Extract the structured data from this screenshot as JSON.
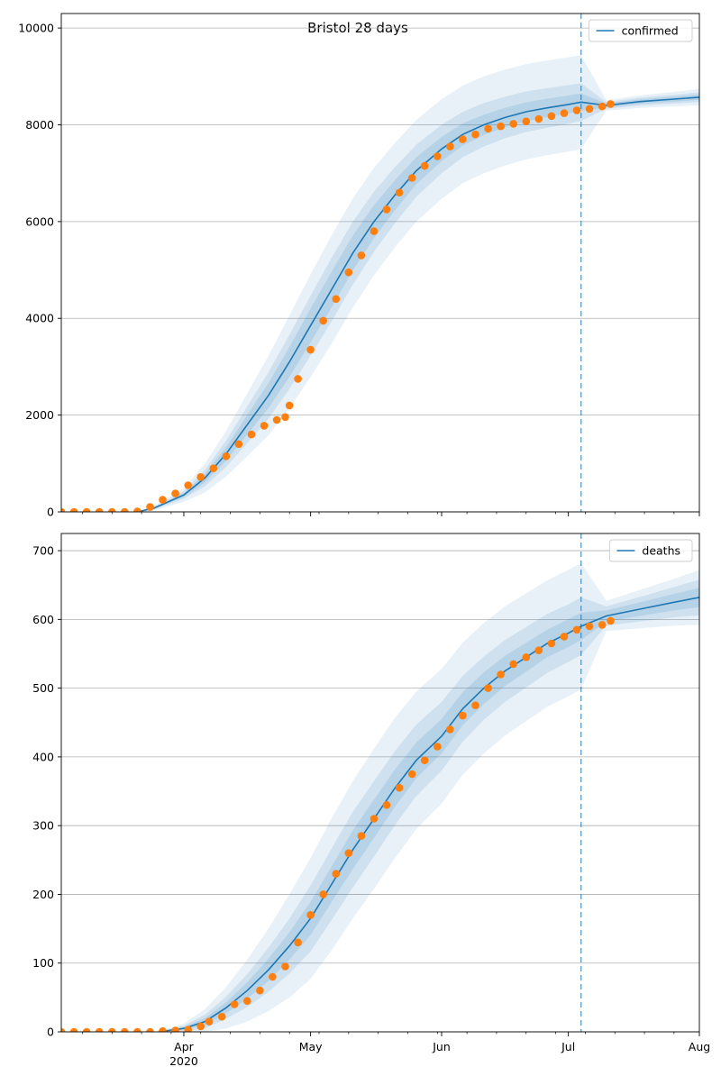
{
  "figure": {
    "title": "Bristol 28 days"
  },
  "colors": {
    "model_line": "#1f77b4",
    "observed": "#ff7f0e",
    "band_fill": "#1f77b4",
    "grid": "#b0b0b0",
    "axis": "#000000"
  },
  "chart_data": [
    {
      "type": "line",
      "name": "confirmed-panel",
      "title": "Bristol 28 days",
      "legend": {
        "label": "confirmed",
        "placement": "top-right"
      },
      "xlabel": "",
      "ylabel": "",
      "x_axis": {
        "range": [
          "2020-03-03",
          "2020-08-01"
        ],
        "major_ticks": [
          {
            "date": "2020-04-01",
            "label": "Apr",
            "sublabel": "2020"
          },
          {
            "date": "2020-05-01",
            "label": "May",
            "sublabel": ""
          },
          {
            "date": "2020-06-01",
            "label": "Jun",
            "sublabel": ""
          },
          {
            "date": "2020-07-01",
            "label": "Jul",
            "sublabel": ""
          },
          {
            "date": "2020-08-01",
            "label": "Aug",
            "sublabel": ""
          }
        ]
      },
      "ylim": [
        0,
        10300
      ],
      "yticks": [
        0,
        2000,
        4000,
        6000,
        8000,
        10000
      ],
      "grid": "horizontal",
      "forecast_start": "2020-07-04",
      "model": {
        "x": [
          "2020-03-21",
          "2020-03-25",
          "2020-04-01",
          "2020-04-06",
          "2020-04-11",
          "2020-04-16",
          "2020-04-21",
          "2020-04-26",
          "2020-05-01",
          "2020-05-06",
          "2020-05-11",
          "2020-05-16",
          "2020-05-21",
          "2020-05-26",
          "2020-06-01",
          "2020-06-06",
          "2020-06-11",
          "2020-06-16",
          "2020-06-21",
          "2020-06-26",
          "2020-07-01",
          "2020-07-04",
          "2020-07-10",
          "2020-07-18",
          "2020-07-26",
          "2020-08-01"
        ],
        "values": [
          0,
          80,
          350,
          700,
          1200,
          1800,
          2400,
          3100,
          3850,
          4600,
          5350,
          6000,
          6550,
          7050,
          7500,
          7800,
          8000,
          8150,
          8270,
          8350,
          8420,
          8470,
          8400,
          8480,
          8530,
          8570
        ],
        "band_inner_half_width": [
          0,
          15,
          40,
          90,
          140,
          200,
          260,
          310,
          350,
          370,
          360,
          340,
          310,
          280,
          250,
          230,
          210,
          200,
          195,
          190,
          185,
          180,
          40,
          45,
          50,
          55
        ],
        "band_mid_half_width": [
          0,
          30,
          80,
          170,
          270,
          380,
          480,
          560,
          620,
          660,
          650,
          620,
          580,
          540,
          500,
          470,
          450,
          430,
          420,
          410,
          400,
          390,
          70,
          80,
          90,
          100
        ],
        "band_outer_half_width": [
          0,
          50,
          140,
          300,
          470,
          650,
          820,
          960,
          1060,
          1120,
          1130,
          1110,
          1080,
          1050,
          1030,
          1010,
          1000,
          990,
          985,
          980,
          975,
          970,
          110,
          130,
          150,
          170
        ]
      },
      "observed": {
        "x": [
          "2020-03-03",
          "2020-03-06",
          "2020-03-09",
          "2020-03-12",
          "2020-03-15",
          "2020-03-18",
          "2020-03-21",
          "2020-03-24",
          "2020-03-27",
          "2020-03-30",
          "2020-04-02",
          "2020-04-05",
          "2020-04-08",
          "2020-04-11",
          "2020-04-14",
          "2020-04-17",
          "2020-04-20",
          "2020-04-23",
          "2020-04-25",
          "2020-04-26",
          "2020-04-28",
          "2020-05-01",
          "2020-05-04",
          "2020-05-07",
          "2020-05-10",
          "2020-05-13",
          "2020-05-16",
          "2020-05-19",
          "2020-05-22",
          "2020-05-25",
          "2020-05-28",
          "2020-05-31",
          "2020-06-03",
          "2020-06-06",
          "2020-06-09",
          "2020-06-12",
          "2020-06-15",
          "2020-06-18",
          "2020-06-21",
          "2020-06-24",
          "2020-06-27",
          "2020-06-30",
          "2020-07-03",
          "2020-07-06",
          "2020-07-09",
          "2020-07-11"
        ],
        "values": [
          0,
          0,
          0,
          0,
          0,
          0,
          10,
          100,
          250,
          380,
          550,
          720,
          900,
          1150,
          1400,
          1600,
          1780,
          1900,
          1960,
          2200,
          2750,
          3350,
          3950,
          4400,
          4950,
          5300,
          5800,
          6250,
          6600,
          6900,
          7150,
          7350,
          7550,
          7700,
          7800,
          7920,
          7970,
          8020,
          8070,
          8120,
          8180,
          8240,
          8300,
          8330,
          8380,
          8430
        ]
      }
    },
    {
      "type": "line",
      "name": "deaths-panel",
      "title": "",
      "legend": {
        "label": "deaths",
        "placement": "top-right"
      },
      "xlabel": "",
      "ylabel": "",
      "x_axis": {
        "range": [
          "2020-03-03",
          "2020-08-01"
        ],
        "major_ticks": [
          {
            "date": "2020-04-01",
            "label": "Apr",
            "sublabel": "2020"
          },
          {
            "date": "2020-05-01",
            "label": "May",
            "sublabel": ""
          },
          {
            "date": "2020-06-01",
            "label": "Jun",
            "sublabel": ""
          },
          {
            "date": "2020-07-01",
            "label": "Jul",
            "sublabel": ""
          },
          {
            "date": "2020-08-01",
            "label": "Aug",
            "sublabel": ""
          }
        ]
      },
      "ylim": [
        0,
        725
      ],
      "yticks": [
        0,
        100,
        200,
        300,
        400,
        500,
        600,
        700
      ],
      "grid": "horizontal",
      "forecast_start": "2020-07-04",
      "model": {
        "x": [
          "2020-03-26",
          "2020-04-01",
          "2020-04-06",
          "2020-04-11",
          "2020-04-16",
          "2020-04-21",
          "2020-04-26",
          "2020-05-01",
          "2020-05-06",
          "2020-05-11",
          "2020-05-16",
          "2020-05-21",
          "2020-05-26",
          "2020-06-01",
          "2020-06-06",
          "2020-06-11",
          "2020-06-16",
          "2020-06-21",
          "2020-06-26",
          "2020-07-01",
          "2020-07-04",
          "2020-07-10",
          "2020-07-18",
          "2020-07-26",
          "2020-08-01"
        ],
        "values": [
          0,
          5,
          15,
          35,
          60,
          90,
          125,
          165,
          215,
          265,
          310,
          355,
          395,
          430,
          470,
          500,
          525,
          545,
          565,
          580,
          590,
          605,
          615,
          625,
          632
        ],
        "band_inner_half_width": [
          0,
          2,
          5,
          8,
          12,
          16,
          20,
          24,
          26,
          28,
          28,
          27,
          26,
          25,
          24,
          23,
          22,
          21,
          20,
          20,
          20,
          8,
          10,
          12,
          14
        ],
        "band_mid_half_width": [
          0,
          4,
          10,
          16,
          24,
          32,
          40,
          48,
          52,
          55,
          55,
          54,
          52,
          50,
          48,
          46,
          45,
          44,
          43,
          42,
          42,
          14,
          18,
          22,
          26
        ],
        "band_outer_half_width": [
          0,
          7,
          18,
          30,
          45,
          60,
          75,
          88,
          96,
          100,
          102,
          102,
          100,
          98,
          96,
          95,
          94,
          93,
          92,
          92,
          92,
          22,
          28,
          34,
          40
        ]
      },
      "observed": {
        "x": [
          "2020-03-03",
          "2020-03-06",
          "2020-03-09",
          "2020-03-12",
          "2020-03-15",
          "2020-03-18",
          "2020-03-21",
          "2020-03-24",
          "2020-03-27",
          "2020-03-30",
          "2020-04-02",
          "2020-04-05",
          "2020-04-07",
          "2020-04-10",
          "2020-04-13",
          "2020-04-16",
          "2020-04-19",
          "2020-04-22",
          "2020-04-25",
          "2020-04-28",
          "2020-05-01",
          "2020-05-04",
          "2020-05-07",
          "2020-05-10",
          "2020-05-13",
          "2020-05-16",
          "2020-05-19",
          "2020-05-22",
          "2020-05-25",
          "2020-05-28",
          "2020-05-31",
          "2020-06-03",
          "2020-06-06",
          "2020-06-09",
          "2020-06-12",
          "2020-06-15",
          "2020-06-18",
          "2020-06-21",
          "2020-06-24",
          "2020-06-27",
          "2020-06-30",
          "2020-07-03",
          "2020-07-06",
          "2020-07-09",
          "2020-07-11"
        ],
        "values": [
          0,
          0,
          0,
          0,
          0,
          0,
          0,
          0,
          1,
          2,
          3,
          8,
          15,
          22,
          40,
          45,
          60,
          80,
          95,
          130,
          170,
          200,
          230,
          260,
          285,
          310,
          330,
          355,
          375,
          395,
          415,
          440,
          460,
          475,
          500,
          520,
          535,
          545,
          555,
          565,
          575,
          585,
          590,
          592,
          598
        ]
      }
    }
  ]
}
